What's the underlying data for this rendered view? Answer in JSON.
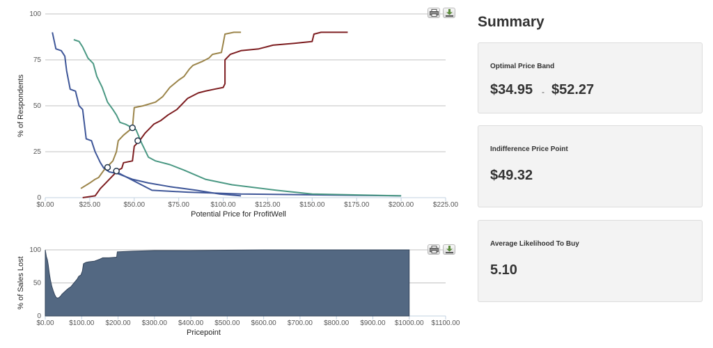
{
  "chart_data": [
    {
      "type": "line",
      "title": "",
      "xlabel": "Potential Price for ProfitWell",
      "ylabel": "% of Respondents",
      "xlim": [
        0,
        225
      ],
      "ylim": [
        0,
        100
      ],
      "x_tick_labels": [
        "$0.00",
        "$25.00",
        "$50.00",
        "$75.00",
        "$100.00",
        "$125.00",
        "$150.00",
        "$175.00",
        "$200.00",
        "$225.00"
      ],
      "y_tick_labels": [
        "0",
        "25",
        "50",
        "75",
        "100"
      ],
      "grid": true,
      "legend": "none",
      "series": [
        {
          "color": "#3e5698",
          "points": [
            [
              4,
              90
            ],
            [
              6,
              81
            ],
            [
              9,
              80
            ],
            [
              11,
              77
            ],
            [
              12,
              69
            ],
            [
              14,
              59
            ],
            [
              17,
              58
            ],
            [
              19,
              50
            ],
            [
              21,
              48
            ],
            [
              23,
              32
            ],
            [
              26,
              31
            ],
            [
              28,
              25
            ],
            [
              31,
              19
            ],
            [
              33,
              16
            ],
            [
              36,
              14
            ],
            [
              41,
              13
            ],
            [
              49,
              10
            ],
            [
              58,
              8
            ],
            [
              70,
              6
            ],
            [
              85,
              4
            ],
            [
              98,
              2
            ],
            [
              110,
              1
            ]
          ]
        },
        {
          "color": "#3e5698",
          "points": [
            [
              40,
              14
            ],
            [
              50,
              9
            ],
            [
              60,
              4
            ],
            [
              80,
              3
            ],
            [
              95,
              2.5
            ],
            [
              110,
              2
            ],
            [
              200,
              1
            ]
          ]
        },
        {
          "color": "#4a9883",
          "points": [
            [
              16,
              86
            ],
            [
              19,
              85
            ],
            [
              21,
              82
            ],
            [
              24,
              76
            ],
            [
              27,
              73
            ],
            [
              29,
              66
            ],
            [
              32,
              60
            ],
            [
              35,
              52
            ],
            [
              38,
              48
            ],
            [
              40,
              45
            ],
            [
              42,
              41
            ],
            [
              45,
              40
            ],
            [
              51,
              37
            ],
            [
              54,
              30
            ],
            [
              58,
              22
            ],
            [
              62,
              20
            ],
            [
              70,
              18
            ],
            [
              78,
              15
            ],
            [
              90,
              10
            ],
            [
              105,
              7
            ],
            [
              130,
              4
            ],
            [
              150,
              2
            ],
            [
              200,
              1
            ]
          ]
        },
        {
          "color": "#9b8449",
          "points": [
            [
              20,
              5
            ],
            [
              25,
              8
            ],
            [
              28,
              10
            ],
            [
              30,
              11
            ],
            [
              33,
              15
            ],
            [
              36,
              18
            ],
            [
              38,
              20
            ],
            [
              40,
              25
            ],
            [
              41,
              31
            ],
            [
              44,
              34
            ],
            [
              49,
              38
            ],
            [
              50,
              49
            ],
            [
              55,
              50
            ],
            [
              62,
              52
            ],
            [
              66,
              55
            ],
            [
              70,
              60
            ],
            [
              75,
              64
            ],
            [
              78,
              66
            ],
            [
              81,
              70
            ],
            [
              83,
              72
            ],
            [
              88,
              74
            ],
            [
              92,
              76
            ],
            [
              94,
              78
            ],
            [
              99,
              79
            ],
            [
              100,
              84
            ],
            [
              101,
              89
            ],
            [
              106,
              90
            ],
            [
              110,
              90
            ]
          ]
        },
        {
          "color": "#7d1d20",
          "points": [
            [
              21,
              0
            ],
            [
              28,
              1
            ],
            [
              31,
              5
            ],
            [
              34,
              8
            ],
            [
              38,
              12
            ],
            [
              41,
              15
            ],
            [
              43,
              16
            ],
            [
              44,
              19
            ],
            [
              49,
              20
            ],
            [
              50,
              28
            ],
            [
              53,
              31
            ],
            [
              56,
              35
            ],
            [
              61,
              40
            ],
            [
              65,
              42
            ],
            [
              69,
              45
            ],
            [
              74,
              48
            ],
            [
              76,
              50
            ],
            [
              80,
              54
            ],
            [
              86,
              57
            ],
            [
              90,
              58
            ],
            [
              95,
              59
            ],
            [
              100,
              60
            ],
            [
              101,
              62
            ],
            [
              101,
              75
            ],
            [
              104,
              78
            ],
            [
              110,
              80
            ],
            [
              120,
              81
            ],
            [
              128,
              83
            ],
            [
              140,
              84
            ],
            [
              150,
              85
            ],
            [
              151,
              89
            ],
            [
              155,
              90
            ],
            [
              170,
              90
            ]
          ]
        }
      ],
      "markers": [
        [
          35,
          16.5
        ],
        [
          40,
          14.5
        ],
        [
          49,
          38
        ],
        [
          52,
          31
        ]
      ]
    },
    {
      "type": "area",
      "title": "",
      "xlabel": "Pricepoint",
      "ylabel": "% of Sales Lost",
      "xlim": [
        0,
        1100
      ],
      "ylim": [
        0,
        100
      ],
      "x_tick_labels": [
        "$0.00",
        "$100.00",
        "$200.00",
        "$300.00",
        "$400.00",
        "$500.00",
        "$600.00",
        "$700.00",
        "$800.00",
        "$900.00",
        "$1000.00",
        "$1100.00"
      ],
      "y_tick_labels": [
        "0",
        "50",
        "100"
      ],
      "grid": true,
      "legend": "none",
      "color": "#536882",
      "points": [
        [
          0,
          100
        ],
        [
          3,
          90
        ],
        [
          6,
          85
        ],
        [
          8,
          78
        ],
        [
          11,
          65
        ],
        [
          14,
          55
        ],
        [
          18,
          45
        ],
        [
          22,
          38
        ],
        [
          26,
          32
        ],
        [
          30,
          28
        ],
        [
          34,
          27
        ],
        [
          38,
          28
        ],
        [
          42,
          30
        ],
        [
          46,
          33
        ],
        [
          52,
          36
        ],
        [
          58,
          39
        ],
        [
          64,
          42
        ],
        [
          70,
          44
        ],
        [
          76,
          48
        ],
        [
          82,
          52
        ],
        [
          88,
          56
        ],
        [
          92,
          60
        ],
        [
          98,
          62
        ],
        [
          102,
          68
        ],
        [
          105,
          79
        ],
        [
          112,
          81
        ],
        [
          120,
          82
        ],
        [
          135,
          83
        ],
        [
          150,
          86
        ],
        [
          158,
          88
        ],
        [
          175,
          88
        ],
        [
          196,
          89
        ],
        [
          198,
          97
        ],
        [
          240,
          98
        ],
        [
          300,
          99
        ],
        [
          400,
          99
        ],
        [
          600,
          100
        ],
        [
          1000,
          100
        ]
      ]
    }
  ],
  "summary": {
    "title": "Summary",
    "optimal": {
      "label": "Optimal Price Band",
      "low": "$34.95",
      "sep": "-",
      "high": "$52.27"
    },
    "indifference": {
      "label": "Indifference Price Point",
      "value": "$49.32"
    },
    "likelihood": {
      "label": "Average Likelihood To Buy",
      "value": "5.10"
    }
  }
}
